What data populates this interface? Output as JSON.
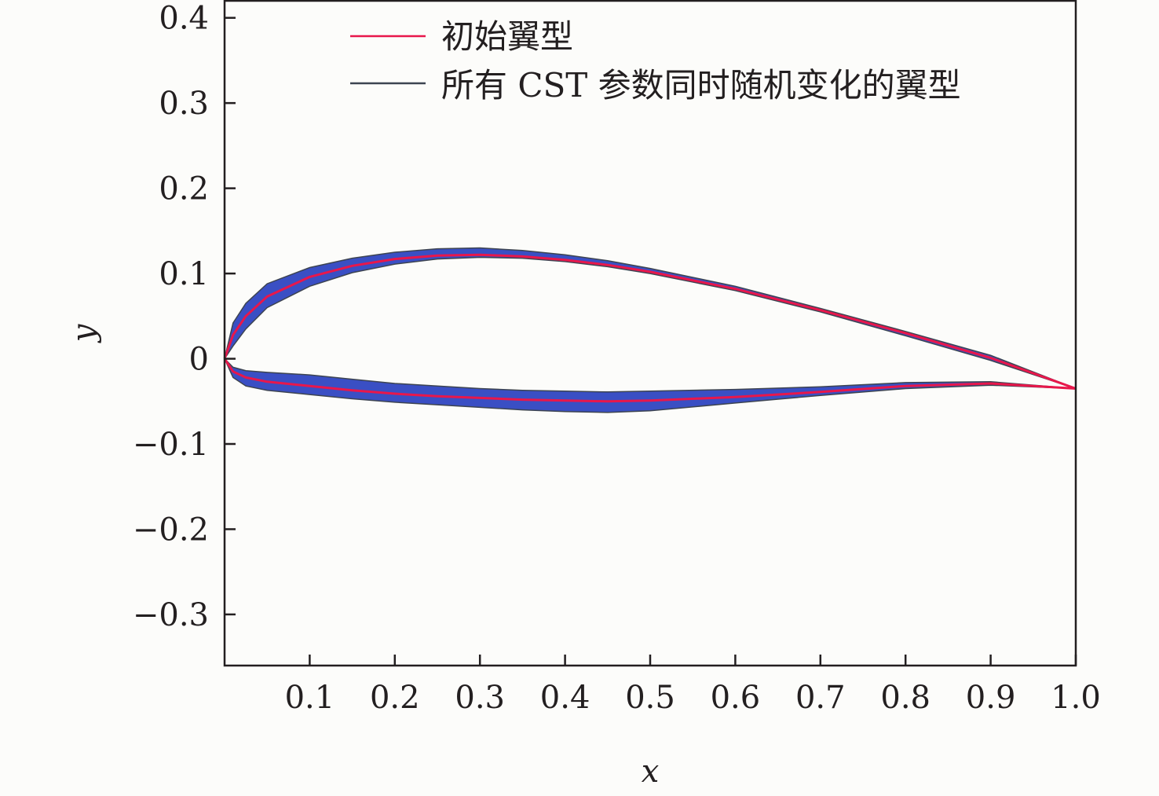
{
  "chart_data": {
    "type": "line",
    "xlabel": "x",
    "ylabel": "y",
    "xlim": [
      0,
      1.0
    ],
    "ylim": [
      -0.36,
      0.42
    ],
    "xticks": [
      0.1,
      0.2,
      0.3,
      0.4,
      0.5,
      0.6,
      0.7,
      0.8,
      0.9,
      1.0
    ],
    "xtick_labels": [
      "0.1",
      "0.2",
      "0.3",
      "0.4",
      "0.5",
      "0.6",
      "0.7",
      "0.8",
      "0.9",
      "1.0"
    ],
    "yticks": [
      0.4,
      0.3,
      0.2,
      0.1,
      0,
      -0.1,
      -0.2,
      -0.3
    ],
    "ytick_labels": [
      "0.4",
      "0.3",
      "0.2",
      "0.1",
      "0",
      "−0.1",
      "−0.2",
      "−0.3"
    ],
    "grid": false,
    "legend_position": "top-right",
    "series": [
      {
        "name": "初始翼型",
        "color": "#e8174b",
        "upper": {
          "x": [
            0,
            0.01,
            0.025,
            0.05,
            0.1,
            0.15,
            0.2,
            0.25,
            0.3,
            0.35,
            0.4,
            0.45,
            0.5,
            0.6,
            0.7,
            0.8,
            0.9,
            1.0
          ],
          "y": [
            0,
            0.028,
            0.05,
            0.073,
            0.096,
            0.109,
            0.117,
            0.121,
            0.122,
            0.12,
            0.116,
            0.11,
            0.102,
            0.082,
            0.057,
            0.03,
            0.001,
            -0.035
          ]
        },
        "lower": {
          "x": [
            0,
            0.01,
            0.025,
            0.05,
            0.1,
            0.15,
            0.2,
            0.25,
            0.3,
            0.35,
            0.4,
            0.45,
            0.5,
            0.6,
            0.7,
            0.8,
            0.9,
            1.0
          ],
          "y": [
            0,
            -0.015,
            -0.022,
            -0.027,
            -0.032,
            -0.037,
            -0.041,
            -0.044,
            -0.046,
            -0.048,
            -0.049,
            -0.05,
            -0.049,
            -0.045,
            -0.039,
            -0.032,
            -0.029,
            -0.035
          ]
        }
      },
      {
        "name": "所有 CST 参数同时随机变化的翼型",
        "color": "#3d4451",
        "fill_color": "#3a4fc4",
        "upper_envelope": {
          "x": [
            0,
            0.01,
            0.025,
            0.05,
            0.1,
            0.15,
            0.2,
            0.25,
            0.3,
            0.35,
            0.4,
            0.45,
            0.5,
            0.6,
            0.7,
            0.8,
            0.9,
            1.0
          ],
          "y_min": [
            0,
            0.015,
            0.035,
            0.06,
            0.085,
            0.101,
            0.111,
            0.117,
            0.119,
            0.118,
            0.114,
            0.108,
            0.1,
            0.08,
            0.055,
            0.027,
            -0.002,
            -0.035
          ],
          "y_max": [
            0,
            0.042,
            0.065,
            0.088,
            0.107,
            0.118,
            0.125,
            0.129,
            0.13,
            0.127,
            0.122,
            0.115,
            0.106,
            0.085,
            0.059,
            0.032,
            0.004,
            -0.035
          ]
        },
        "lower_envelope": {
          "x": [
            0,
            0.01,
            0.025,
            0.05,
            0.1,
            0.15,
            0.2,
            0.25,
            0.3,
            0.35,
            0.4,
            0.45,
            0.5,
            0.6,
            0.7,
            0.8,
            0.9,
            1.0
          ],
          "y_min": [
            0,
            -0.022,
            -0.032,
            -0.037,
            -0.042,
            -0.047,
            -0.051,
            -0.054,
            -0.057,
            -0.06,
            -0.062,
            -0.063,
            -0.061,
            -0.052,
            -0.043,
            -0.035,
            -0.031,
            -0.035
          ],
          "y_max": [
            0,
            -0.01,
            -0.014,
            -0.016,
            -0.019,
            -0.024,
            -0.029,
            -0.032,
            -0.035,
            -0.037,
            -0.038,
            -0.039,
            -0.038,
            -0.036,
            -0.033,
            -0.028,
            -0.027,
            -0.035
          ]
        }
      }
    ]
  }
}
